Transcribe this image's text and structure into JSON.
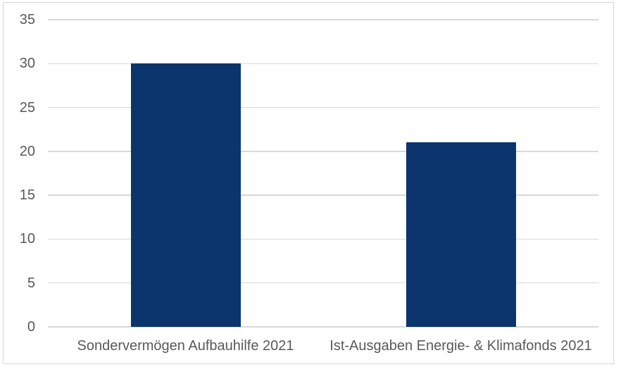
{
  "chart_data": {
    "type": "bar",
    "title": "",
    "xlabel": "",
    "ylabel": "",
    "categories": [
      "Sondervermögen Aufbauhilfe 2021",
      "Ist-Ausgaben Energie- & Klimafonds 2021"
    ],
    "values": [
      30,
      21
    ],
    "ylim": [
      0,
      35
    ],
    "yticks": [
      0,
      5,
      10,
      15,
      20,
      25,
      30,
      35
    ],
    "grid": true,
    "legend": false,
    "colors": {
      "bar": "#0b356c",
      "axis_text": "#595959",
      "gridline": "#d9d9d9",
      "frame_border": "#d7d7d7",
      "background": "#ffffff"
    }
  }
}
